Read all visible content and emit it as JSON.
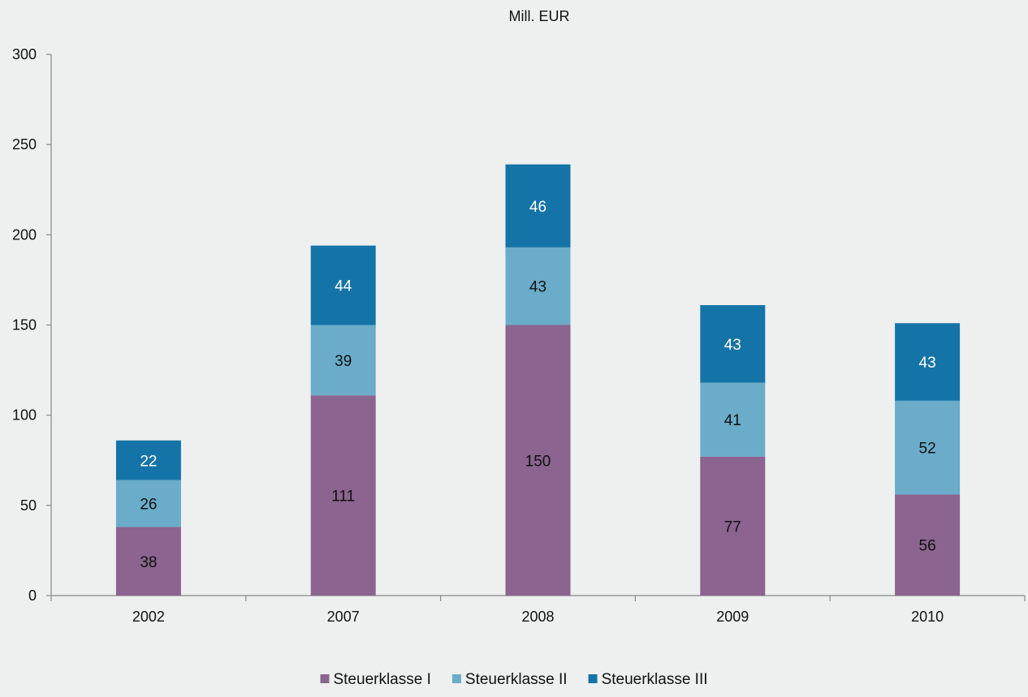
{
  "chart_data": {
    "type": "bar",
    "stacked": true,
    "title": "Mill. EUR",
    "categories": [
      "2002",
      "2007",
      "2008",
      "2009",
      "2010"
    ],
    "series": [
      {
        "name": "Steuerklasse I",
        "values": [
          38,
          111,
          150,
          77,
          56
        ],
        "color": "#8b648f",
        "label_color": "#111111"
      },
      {
        "name": "Steuerklasse II",
        "values": [
          26,
          39,
          43,
          41,
          52
        ],
        "color": "#6aacc9",
        "label_color": "#111111"
      },
      {
        "name": "Steuerklasse III",
        "values": [
          22,
          44,
          46,
          43,
          43
        ],
        "color": "#1574a7",
        "label_color": "#ffffff"
      }
    ],
    "ylim": [
      0,
      300
    ],
    "yticks": [
      0,
      50,
      100,
      150,
      200,
      250,
      300
    ],
    "grid": false,
    "legend_position": "bottom"
  }
}
